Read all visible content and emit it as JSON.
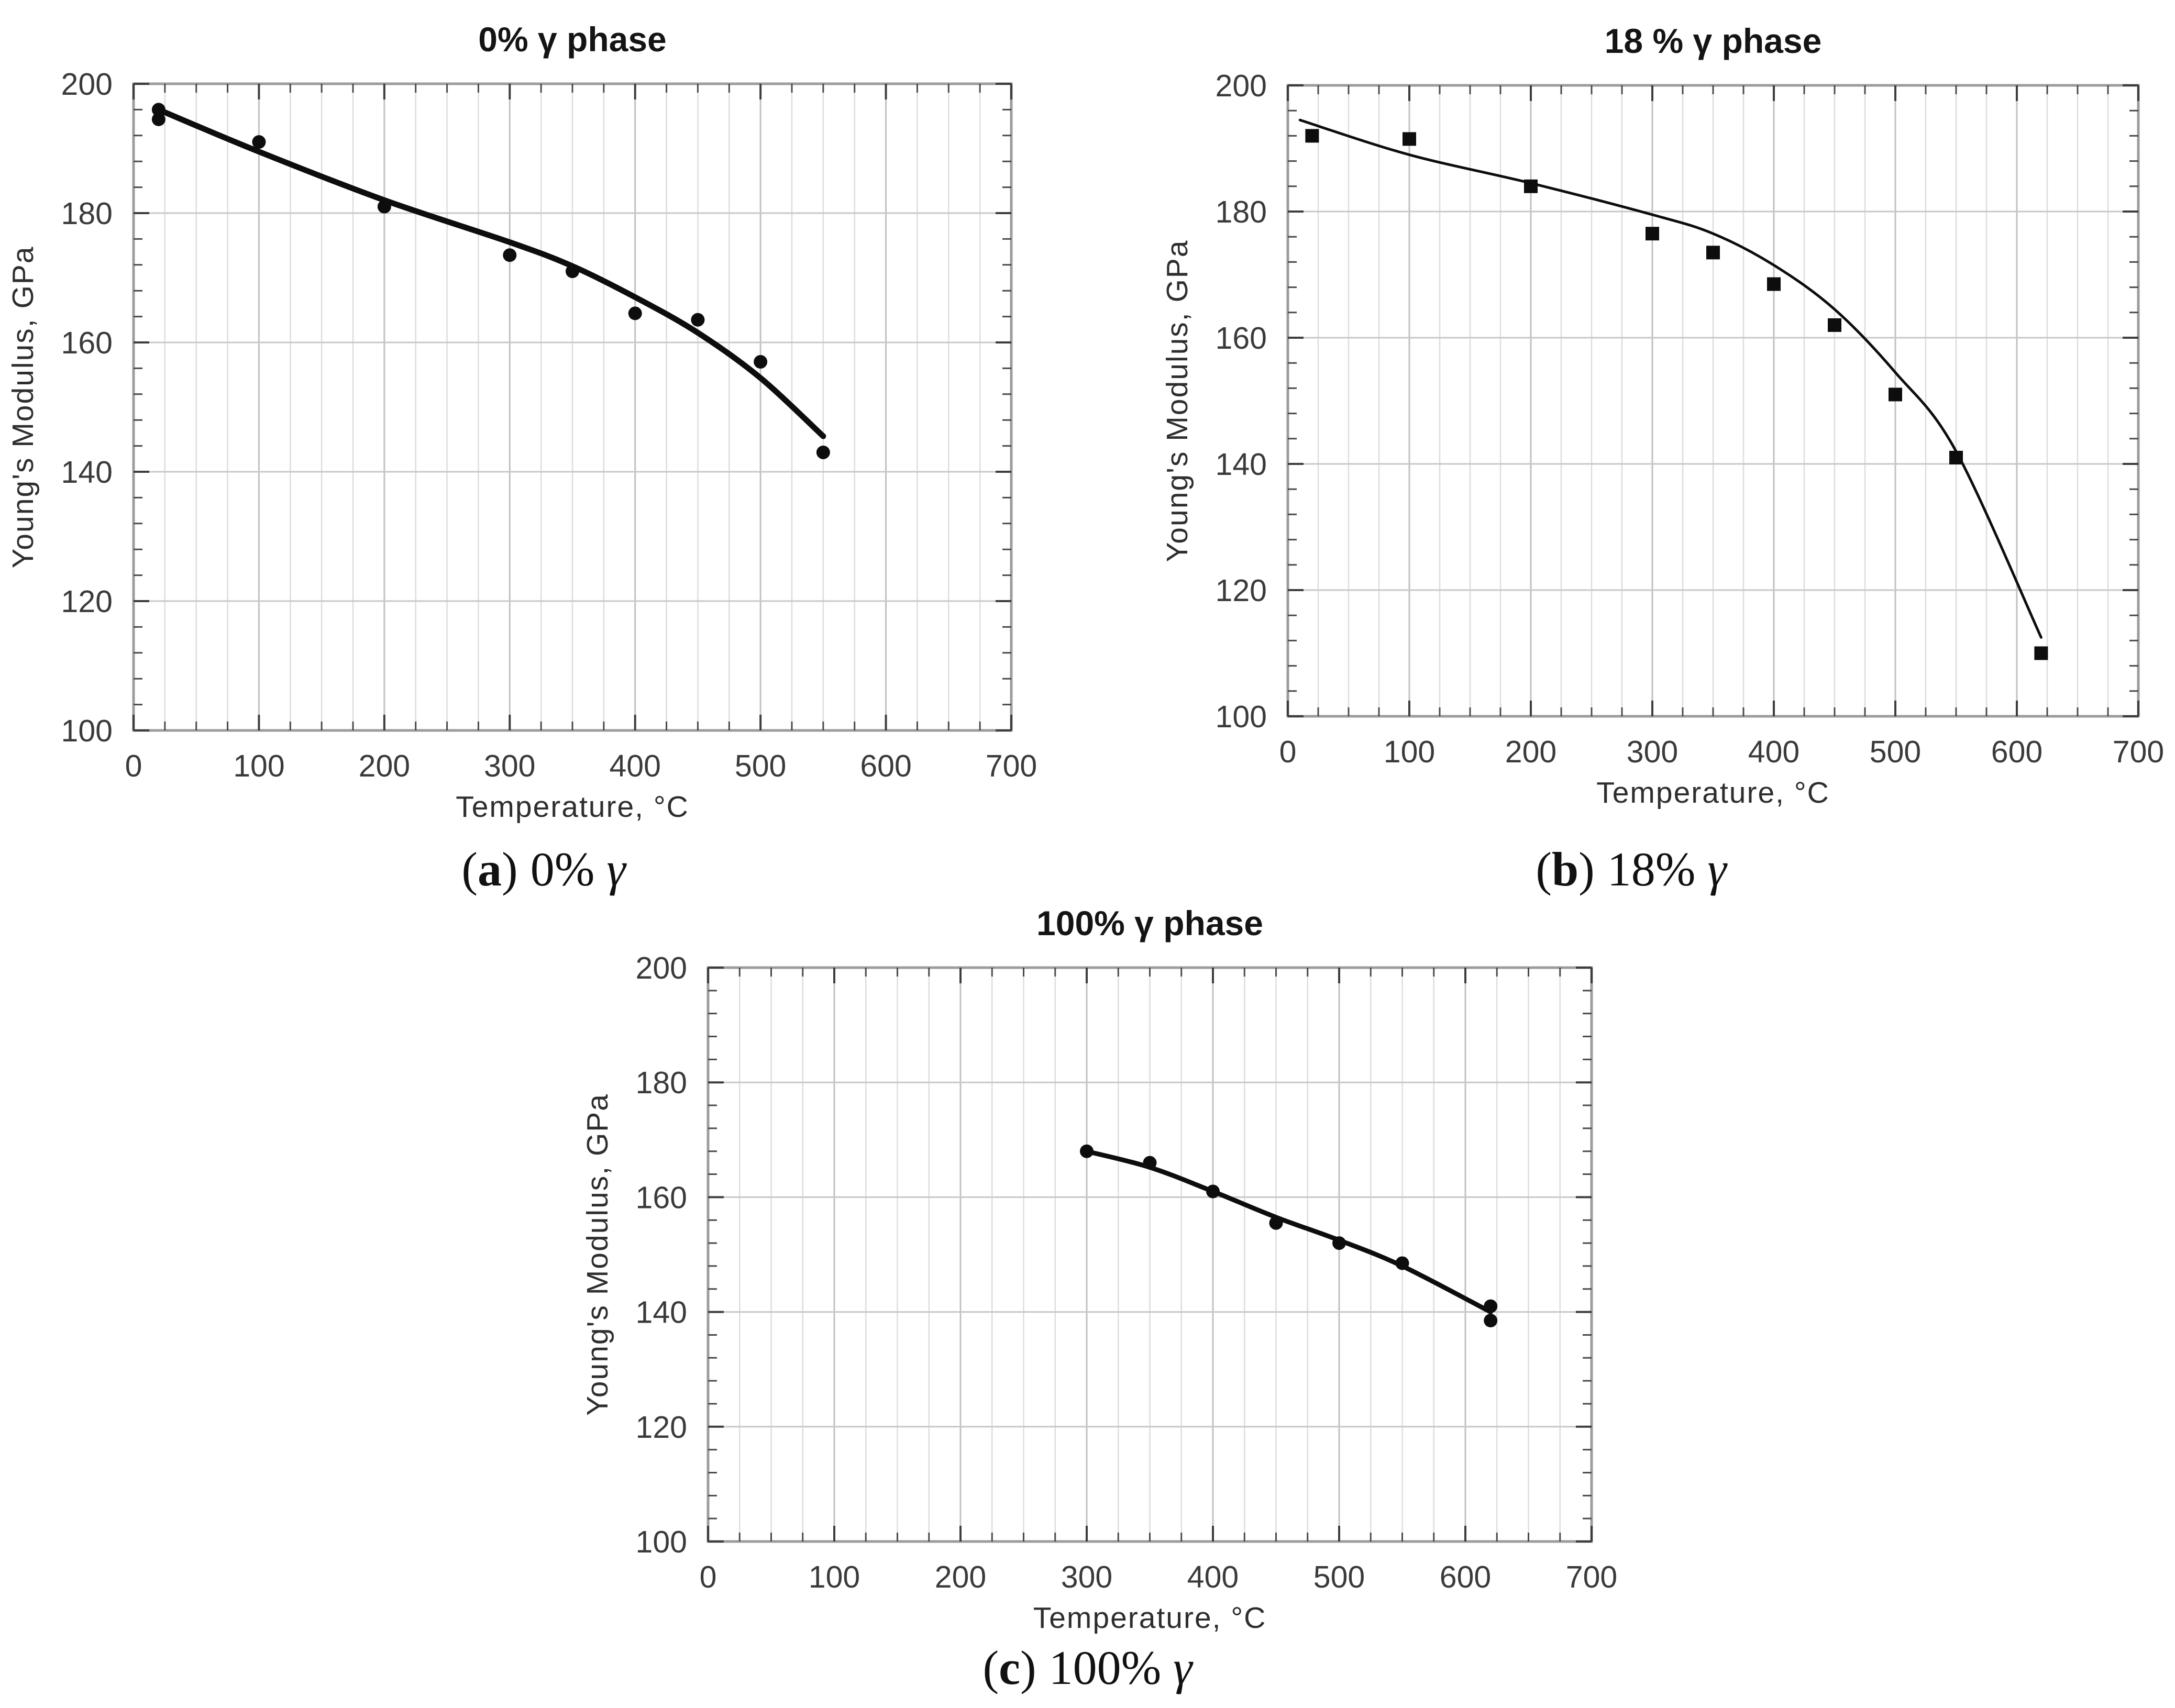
{
  "page": {
    "background": "#ffffff",
    "ink": "#0d0d0d",
    "tick_label_color": "#3a3a3a",
    "grid_minor_color": "#dddddd",
    "grid_major_color": "#c1c1c1",
    "frame_color": "#9c9c9c"
  },
  "chart_data": [
    {
      "type": "scatter",
      "title": "0% γ phase",
      "xlabel": "Temperature, °C",
      "ylabel": "Young's Modulus, GPa",
      "xlim": [
        0,
        700
      ],
      "ylim": [
        100,
        200
      ],
      "xticks": [
        0,
        100,
        200,
        300,
        400,
        500,
        600,
        700
      ],
      "yticks": [
        100,
        120,
        140,
        160,
        180,
        200
      ],
      "x_minor_step": 25,
      "y_minor_step": 4,
      "grid": "vertical minor+major, horizontal major",
      "legend": "none",
      "marker": "circle",
      "series": [
        {
          "name": "measured",
          "role": "scatter",
          "x": [
            20,
            20,
            100,
            200,
            300,
            350,
            400,
            450,
            500,
            550
          ],
          "y": [
            196,
            194.5,
            191,
            181,
            173.5,
            171,
            164.5,
            163.5,
            157,
            143
          ]
        },
        {
          "name": "fit",
          "role": "line",
          "x": [
            20,
            100,
            200,
            300,
            350,
            400,
            450,
            500,
            550
          ],
          "y": [
            196,
            189.5,
            182,
            175.5,
            171.8,
            167,
            161.5,
            154.5,
            145.5
          ]
        }
      ]
    },
    {
      "type": "scatter",
      "title": "18 % γ phase",
      "xlabel": "Temperature, °C",
      "ylabel": "Young's Modulus, GPa",
      "xlim": [
        0,
        700
      ],
      "ylim": [
        100,
        200
      ],
      "xticks": [
        0,
        100,
        200,
        300,
        400,
        500,
        600,
        700
      ],
      "yticks": [
        100,
        120,
        140,
        160,
        180,
        200
      ],
      "x_minor_step": 25,
      "y_minor_step": 4,
      "grid": "vertical minor+major, horizontal major",
      "legend": "none",
      "marker": "square",
      "series": [
        {
          "name": "measured",
          "role": "scatter",
          "x": [
            20,
            100,
            200,
            300,
            350,
            400,
            450,
            500,
            550,
            620
          ],
          "y": [
            192,
            191.5,
            184,
            176.5,
            173.5,
            168.5,
            162,
            151,
            141,
            110
          ]
        },
        {
          "name": "fit",
          "role": "line",
          "x": [
            10,
            100,
            200,
            300,
            350,
            400,
            450,
            500,
            550,
            620
          ],
          "y": [
            194.5,
            189,
            184.5,
            179.5,
            176.5,
            171.5,
            164.5,
            154.5,
            142,
            112.5
          ]
        }
      ]
    },
    {
      "type": "scatter",
      "title": "100% γ phase",
      "xlabel": "Temperature, °C",
      "ylabel": "Young's Modulus, GPa",
      "xlim": [
        0,
        700
      ],
      "ylim": [
        100,
        200
      ],
      "xticks": [
        0,
        100,
        200,
        300,
        400,
        500,
        600,
        700
      ],
      "yticks": [
        100,
        120,
        140,
        160,
        180,
        200
      ],
      "x_minor_step": 25,
      "y_minor_step": 4,
      "grid": "vertical minor+major, horizontal major",
      "legend": "none",
      "marker": "circle",
      "series": [
        {
          "name": "measured",
          "role": "scatter",
          "x": [
            300,
            350,
            400,
            450,
            500,
            550,
            620,
            620
          ],
          "y": [
            168,
            166,
            161,
            155.5,
            152,
            148.5,
            141,
            138.5
          ]
        },
        {
          "name": "fit",
          "role": "line",
          "x": [
            300,
            350,
            400,
            450,
            500,
            550,
            620
          ],
          "y": [
            168,
            165.2,
            161,
            156.5,
            152.5,
            148,
            140
          ]
        }
      ]
    }
  ],
  "captions": [
    {
      "open": "(",
      "letter": "a",
      "close": ")",
      "text": "0% γ"
    },
    {
      "open": "(",
      "letter": "b",
      "close": ")",
      "text": "18% γ"
    },
    {
      "open": "(",
      "letter": "c",
      "close": ")",
      "text": "100% γ"
    }
  ]
}
